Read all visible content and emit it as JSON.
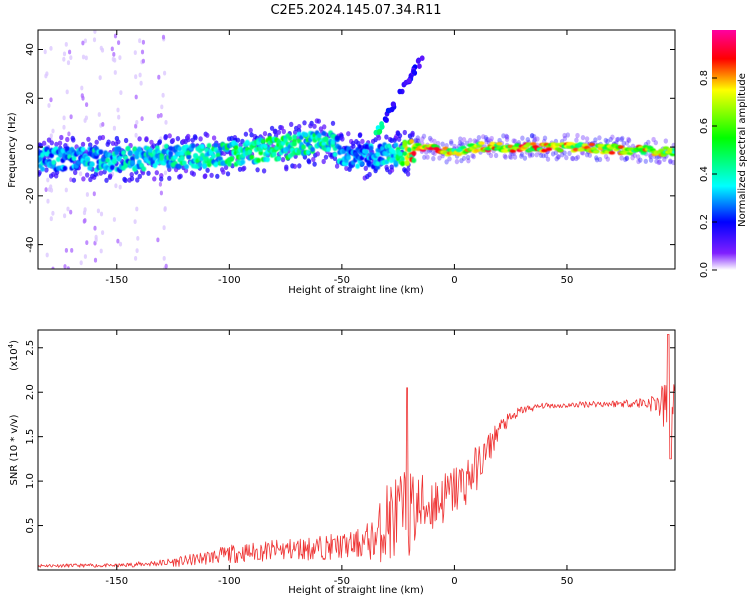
{
  "chart_data": [
    {
      "type": "heatmap",
      "title": "C2E5.2024.145.07.34.R11",
      "xlabel": "Height of straight line (km)",
      "ylabel": "Frequency (Hz)",
      "xlim": [
        -185,
        98
      ],
      "ylim": [
        -50,
        48
      ],
      "xticks": [
        -150,
        -100,
        -50,
        0,
        50
      ],
      "xtick_labels": [
        "-150",
        "-100",
        "-50",
        "0",
        "50"
      ],
      "yticks": [
        40,
        20,
        0,
        -20,
        -40
      ],
      "ytick_labels": [
        "40",
        "20",
        "0",
        "-20",
        "-40"
      ],
      "colorbar": {
        "label": "Normalized spectral amplitude",
        "range": [
          0,
          1
        ],
        "ticks": [
          0,
          0.2,
          0.4,
          0.6,
          0.8
        ],
        "tick_labels": [
          "0.0",
          "0.2",
          "0.4",
          "0.6",
          "0.8"
        ],
        "colors": [
          "#ffffff",
          "#6000ff",
          "#0000ff",
          "#00ffff",
          "#00ff00",
          "#ffff00",
          "#ff0000",
          "#ff00a0"
        ]
      },
      "main_band": {
        "center_hz": [
          [
            -185,
            -5
          ],
          [
            -150,
            -5
          ],
          [
            -100,
            -3
          ],
          [
            -75,
            0
          ],
          [
            -55,
            3
          ],
          [
            -50,
            -3
          ],
          [
            -35,
            -4
          ],
          [
            -20,
            -2
          ],
          [
            -15,
            0
          ],
          [
            0,
            -2
          ],
          [
            10,
            0
          ],
          [
            50,
            0
          ],
          [
            98,
            -2
          ]
        ],
        "amplitude": [
          [
            -185,
            0.35
          ],
          [
            -150,
            0.38
          ],
          [
            -110,
            0.45
          ],
          [
            -80,
            0.5
          ],
          [
            -60,
            0.45
          ],
          [
            -45,
            0.3
          ],
          [
            -30,
            0.35
          ],
          [
            -18,
            0.8
          ],
          [
            -10,
            0.85
          ],
          [
            0,
            0.7
          ],
          [
            20,
            0.85
          ],
          [
            60,
            0.75
          ],
          [
            90,
            0.78
          ],
          [
            98,
            0.6
          ]
        ]
      },
      "rising_feature": {
        "x_km": [
          -35,
          -14
        ],
        "freq_hz": [
          5,
          37
        ]
      },
      "scatter_columns_km": [
        -180,
        -172,
        -165,
        -158,
        -150,
        -140,
        -130
      ]
    },
    {
      "type": "line",
      "title": "",
      "xlabel": "Height of straight line (km)",
      "ylabel": "SNR (10 * v/v)",
      "y_scale_label": "(x10",
      "y_scale_exponent": "4",
      "y_scale_suffix": ")",
      "xlim": [
        -185,
        98
      ],
      "ylim": [
        0,
        2.7
      ],
      "xticks": [
        -150,
        -100,
        -50,
        0,
        50
      ],
      "xtick_labels": [
        "-150",
        "-100",
        "-50",
        "0",
        "50"
      ],
      "yticks": [
        0.5,
        1.0,
        1.5,
        2.0,
        2.5
      ],
      "ytick_labels": [
        "0.5",
        "1.0",
        "1.5",
        "2.0",
        "2.5"
      ],
      "series": [
        {
          "name": "SNR",
          "color": "#ee3333",
          "x": [
            -185,
            -150,
            -130,
            -120,
            -100,
            -80,
            -60,
            -45,
            -35,
            -30,
            -25,
            -20,
            -15,
            -10,
            -5,
            0,
            5,
            10,
            15,
            20,
            30,
            40,
            50,
            60,
            70,
            80,
            90,
            95,
            98
          ],
          "y": [
            0.05,
            0.05,
            0.08,
            0.1,
            0.18,
            0.22,
            0.25,
            0.28,
            0.35,
            0.55,
            0.6,
            0.65,
            0.7,
            0.75,
            0.8,
            0.9,
            1.0,
            1.15,
            1.35,
            1.6,
            1.8,
            1.85,
            1.85,
            1.87,
            1.87,
            1.88,
            1.88,
            1.8,
            1.9
          ],
          "spread": [
            0.02,
            0.02,
            0.04,
            0.06,
            0.1,
            0.12,
            0.14,
            0.15,
            0.25,
            0.5,
            0.5,
            0.5,
            0.4,
            0.35,
            0.3,
            0.3,
            0.3,
            0.25,
            0.2,
            0.1,
            0.05,
            0.03,
            0.03,
            0.04,
            0.04,
            0.05,
            0.12,
            0.4,
            0.2
          ],
          "annotations": [
            {
              "x": -21,
              "y": 2.05
            },
            {
              "x": 95,
              "y": 2.65
            },
            {
              "x": 96,
              "y": 1.25
            }
          ]
        }
      ]
    }
  ]
}
